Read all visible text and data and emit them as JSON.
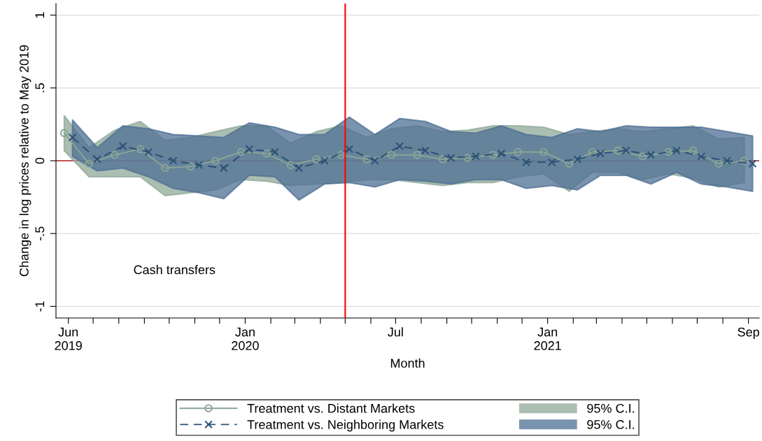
{
  "chart_data": {
    "type": "line",
    "xlabel": "Month",
    "ylabel": "Change in log prices relative to May 2019",
    "series": [
      {
        "name": "Treatment vs. Distant Markets",
        "color": "#8aa596",
        "marker": "circle",
        "line_style": "solid",
        "x": [
          "2019-05-27",
          "2019-06-26",
          "2019-07-27",
          "2019-08-27",
          "2019-09-26",
          "2019-10-27",
          "2019-11-26",
          "2019-12-27",
          "2020-01-27",
          "2020-02-25",
          "2020-03-27",
          "2020-04-26",
          "2020-05-27",
          "2020-06-26",
          "2020-07-27",
          "2020-08-27",
          "2020-09-26",
          "2020-10-27",
          "2020-11-26",
          "2020-12-27",
          "2021-01-27",
          "2021-02-24",
          "2021-03-27",
          "2021-04-26",
          "2021-05-27",
          "2021-06-26",
          "2021-07-27",
          "2021-08-27"
        ],
        "values": [
          0.19,
          -0.02,
          0.04,
          0.08,
          -0.05,
          -0.04,
          0.0,
          0.06,
          0.05,
          -0.03,
          0.01,
          0.04,
          0.01,
          0.04,
          0.04,
          0.01,
          0.02,
          0.04,
          0.06,
          0.06,
          -0.02,
          0.06,
          0.07,
          0.03,
          0.06,
          0.07,
          -0.02,
          0.0
        ],
        "lower": [
          0.07,
          -0.11,
          -0.11,
          -0.11,
          -0.24,
          -0.22,
          -0.2,
          -0.13,
          -0.14,
          -0.17,
          -0.16,
          -0.15,
          -0.13,
          -0.13,
          -0.15,
          -0.17,
          -0.15,
          -0.15,
          -0.11,
          -0.09,
          -0.21,
          -0.08,
          -0.08,
          -0.13,
          -0.09,
          -0.12,
          -0.18,
          -0.15
        ],
        "upper": [
          0.31,
          0.09,
          0.21,
          0.27,
          0.14,
          0.16,
          0.2,
          0.24,
          0.24,
          0.12,
          0.2,
          0.24,
          0.16,
          0.22,
          0.24,
          0.2,
          0.21,
          0.24,
          0.24,
          0.23,
          0.18,
          0.2,
          0.22,
          0.2,
          0.22,
          0.24,
          0.15,
          0.16
        ]
      },
      {
        "name": "Treatment vs. Neighboring Markets",
        "color": "#2c5176",
        "marker": "cross",
        "line_style": "dashed",
        "x": [
          "2019-06-06",
          "2019-07-06",
          "2019-08-06",
          "2019-09-06",
          "2019-10-06",
          "2019-11-06",
          "2019-12-06",
          "2020-01-06",
          "2020-02-06",
          "2020-03-06",
          "2020-04-06",
          "2020-05-06",
          "2020-06-06",
          "2020-07-06",
          "2020-08-06",
          "2020-09-06",
          "2020-10-06",
          "2020-11-06",
          "2020-12-06",
          "2021-01-06",
          "2021-02-06",
          "2021-03-06",
          "2021-04-06",
          "2021-05-06",
          "2021-06-06",
          "2021-07-06",
          "2021-08-06",
          "2021-09-06"
        ],
        "values": [
          0.16,
          0.01,
          0.1,
          0.06,
          0.0,
          -0.03,
          -0.05,
          0.08,
          0.06,
          -0.05,
          0.0,
          0.08,
          0.0,
          0.1,
          0.07,
          0.02,
          0.03,
          0.05,
          -0.01,
          -0.01,
          0.01,
          0.05,
          0.07,
          0.04,
          0.07,
          0.03,
          0.0,
          -0.02
        ],
        "lower": [
          0.03,
          -0.07,
          -0.05,
          -0.11,
          -0.19,
          -0.22,
          -0.26,
          -0.1,
          -0.11,
          -0.27,
          -0.16,
          -0.15,
          -0.18,
          -0.13,
          -0.14,
          -0.16,
          -0.13,
          -0.13,
          -0.19,
          -0.17,
          -0.2,
          -0.1,
          -0.1,
          -0.16,
          -0.08,
          -0.16,
          -0.18,
          -0.21
        ],
        "upper": [
          0.28,
          0.09,
          0.24,
          0.22,
          0.18,
          0.17,
          0.16,
          0.26,
          0.23,
          0.18,
          0.18,
          0.3,
          0.18,
          0.29,
          0.27,
          0.2,
          0.19,
          0.24,
          0.18,
          0.16,
          0.22,
          0.2,
          0.24,
          0.23,
          0.23,
          0.23,
          0.2,
          0.17
        ]
      },
      {
        "type": "area",
        "name": "95% C.I.",
        "color": "#8fa898"
      },
      {
        "type": "area",
        "name": "95% C.I.",
        "color": "#4d6f93"
      }
    ],
    "xlim": [
      "2019-05-17",
      "2021-09-14"
    ],
    "xticks": [
      {
        "value": "2019-06-01",
        "label": "Jun\n2019"
      },
      {
        "value": "2019-07-01",
        "label": null
      },
      {
        "value": "2019-08-01",
        "label": null
      },
      {
        "value": "2019-09-01",
        "label": null
      },
      {
        "value": "2019-10-01",
        "label": null
      },
      {
        "value": "2019-11-01",
        "label": null
      },
      {
        "value": "2019-12-01",
        "label": null
      },
      {
        "value": "2020-01-01",
        "label": "Jan\n2020"
      },
      {
        "value": "2020-02-01",
        "label": null
      },
      {
        "value": "2020-03-01",
        "label": null
      },
      {
        "value": "2020-04-01",
        "label": null
      },
      {
        "value": "2020-05-01",
        "label": null
      },
      {
        "value": "2020-06-01",
        "label": null
      },
      {
        "value": "2020-07-01",
        "label": "Jul"
      },
      {
        "value": "2020-08-01",
        "label": null
      },
      {
        "value": "2020-09-01",
        "label": null
      },
      {
        "value": "2020-10-01",
        "label": null
      },
      {
        "value": "2020-11-01",
        "label": null
      },
      {
        "value": "2020-12-01",
        "label": null
      },
      {
        "value": "2021-01-01",
        "label": "Jan\n2021"
      },
      {
        "value": "2021-02-01",
        "label": null
      },
      {
        "value": "2021-03-01",
        "label": null
      },
      {
        "value": "2021-04-01",
        "label": null
      },
      {
        "value": "2021-05-01",
        "label": null
      },
      {
        "value": "2021-06-01",
        "label": null
      },
      {
        "value": "2021-07-01",
        "label": null
      },
      {
        "value": "2021-08-01",
        "label": null
      },
      {
        "value": "2021-09-01",
        "label": "Sep"
      }
    ],
    "ylim": [
      -1.08,
      1.08
    ],
    "yticks": [
      {
        "value": -1,
        "label": "-1"
      },
      {
        "value": -0.5,
        "label": "-.5"
      },
      0,
      {
        "value": 0.5,
        "label": ".5"
      },
      1
    ],
    "ref_lines": [
      {
        "axis": "x",
        "value": "2020-05-01",
        "color": "#ff0000"
      },
      {
        "axis": "y",
        "value": 0,
        "color": "#b22222"
      }
    ],
    "annotations": [
      "Cash transfers"
    ],
    "grid": "y",
    "legend": "bottom"
  }
}
